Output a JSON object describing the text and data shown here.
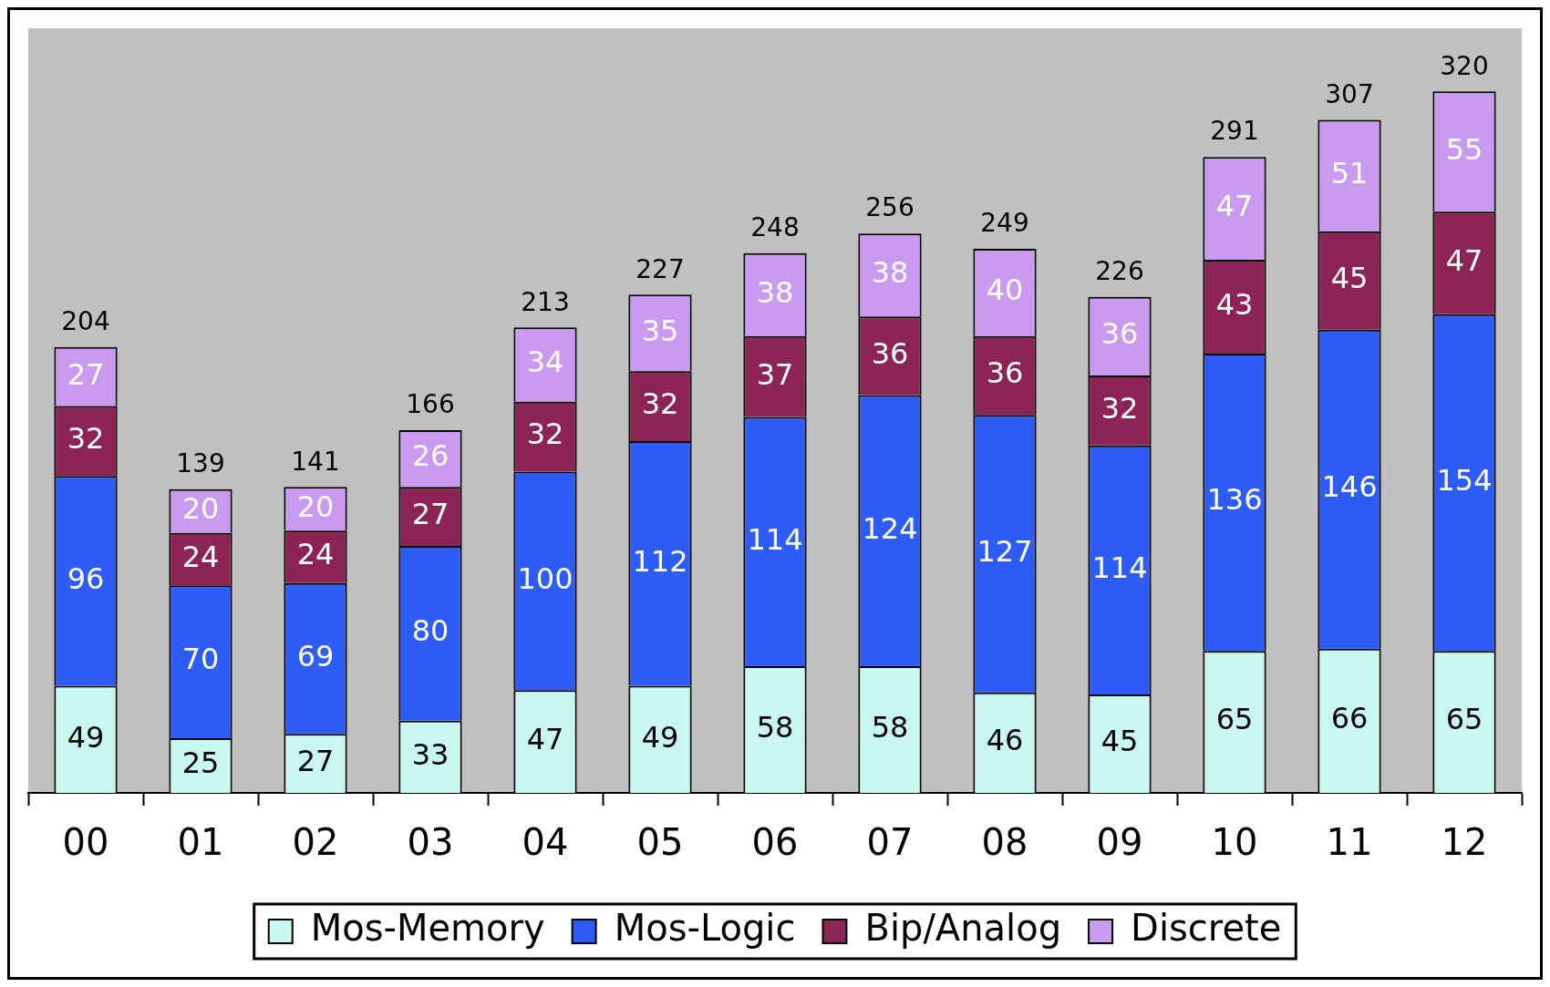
{
  "chart_data": {
    "type": "bar",
    "stacked": true,
    "data_labels": true,
    "legend": "bottom",
    "grid": false,
    "categories": [
      "00",
      "01",
      "02",
      "03",
      "04",
      "05",
      "06",
      "07",
      "08",
      "09",
      "10",
      "11",
      "12"
    ],
    "series": [
      {
        "name": "Mos-Memory",
        "color": "#c8f7f0",
        "values": [
          49,
          25,
          27,
          33,
          47,
          49,
          58,
          58,
          46,
          45,
          65,
          66,
          65
        ]
      },
      {
        "name": "Mos-Logic",
        "color": "#2d5cf6",
        "values": [
          96,
          70,
          69,
          80,
          100,
          112,
          114,
          124,
          127,
          114,
          136,
          146,
          154
        ]
      },
      {
        "name": "Bip/Analog",
        "color": "#8c2455",
        "values": [
          32,
          24,
          24,
          27,
          32,
          32,
          37,
          36,
          36,
          32,
          43,
          45,
          47
        ]
      },
      {
        "name": "Discrete",
        "color": "#c99af0",
        "values": [
          27,
          20,
          20,
          26,
          34,
          35,
          38,
          38,
          40,
          36,
          47,
          51,
          55
        ]
      }
    ],
    "totals": [
      "204",
      "139",
      "141",
      "166",
      "213",
      "227",
      "248",
      "256",
      "249",
      "226",
      "291",
      "307",
      "320"
    ]
  }
}
